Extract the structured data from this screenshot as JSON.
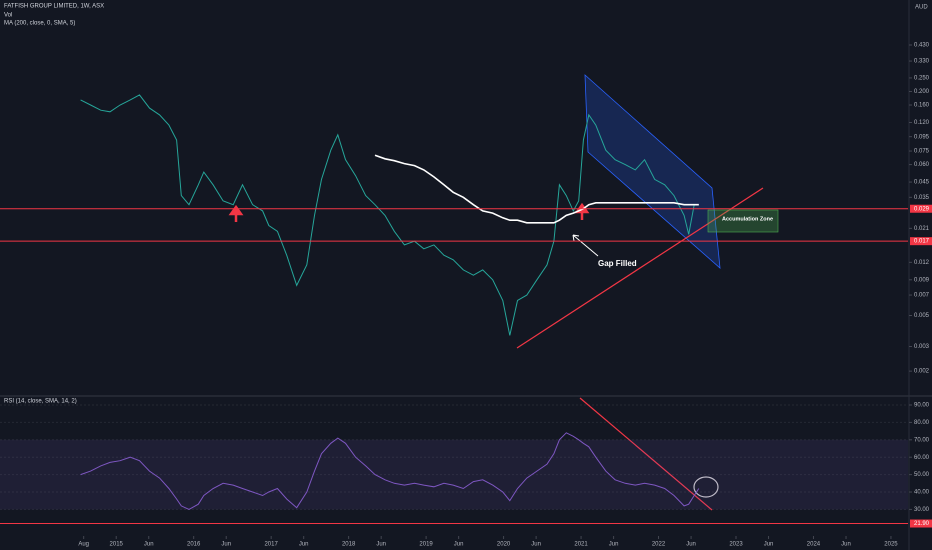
{
  "header": {
    "unit": "AUD"
  },
  "chart_data": [
    {
      "type": "line",
      "title": "FATFISH GROUP LIMITED, 1W, ASX",
      "indicators": [
        "Vol",
        "MA (200, close, 0, SMA, 5)"
      ],
      "log_scale": true,
      "annotations": [
        "Gap Filled",
        "Accumulation Zone"
      ],
      "x": [
        2014.54,
        2014.67,
        2014.8,
        2014.92,
        2015.05,
        2015.18,
        2015.3,
        2015.43,
        2015.56,
        2015.68,
        2015.78,
        2015.84,
        2015.94,
        2016.06,
        2016.13,
        2016.25,
        2016.38,
        2016.51,
        2016.63,
        2016.76,
        2016.89,
        2016.97,
        2017.08,
        2017.2,
        2017.33,
        2017.46,
        2017.56,
        2017.65,
        2017.77,
        2017.86,
        2017.96,
        2018.09,
        2018.22,
        2018.34,
        2018.47,
        2018.59,
        2018.72,
        2018.85,
        2018.97,
        2019.1,
        2019.23,
        2019.35,
        2019.48,
        2019.61,
        2019.73,
        2019.86,
        2019.99,
        2020.08,
        2020.18,
        2020.3,
        2020.43,
        2020.56,
        2020.65,
        2020.72,
        2020.81,
        2020.9,
        2020.97,
        2021.03,
        2021.1,
        2021.19,
        2021.32,
        2021.44,
        2021.57,
        2021.7,
        2021.82,
        2021.95,
        2022.08,
        2022.2,
        2022.33,
        2022.39,
        2022.46,
        2022.52
      ],
      "series": [
        {
          "color": "#26a69a",
          "values": [
            0.174,
            0.16,
            0.147,
            0.143,
            0.16,
            0.174,
            0.189,
            0.152,
            0.136,
            0.115,
            0.09,
            0.036,
            0.031,
            0.043,
            0.053,
            0.043,
            0.033,
            0.031,
            0.043,
            0.031,
            0.028,
            0.022,
            0.02,
            0.0135,
            0.0082,
            0.0115,
            0.026,
            0.047,
            0.076,
            0.098,
            0.065,
            0.05,
            0.036,
            0.031,
            0.026,
            0.02,
            0.016,
            0.017,
            0.015,
            0.016,
            0.0135,
            0.0125,
            0.0106,
            0.0097,
            0.0106,
            0.009,
            0.0064,
            0.0036,
            0.0064,
            0.007,
            0.009,
            0.0115,
            0.017,
            0.043,
            0.036,
            0.028,
            0.033,
            0.09,
            0.136,
            0.115,
            0.076,
            0.065,
            0.06,
            0.055,
            0.065,
            0.047,
            0.043,
            0.036,
            0.026,
            0.019,
            0.031,
            0.031
          ]
        },
        {
          "color": "#ffffff",
          "values": [
            null,
            null,
            null,
            null,
            null,
            null,
            null,
            null,
            null,
            null,
            null,
            null,
            null,
            null,
            null,
            null,
            null,
            null,
            null,
            null,
            null,
            null,
            null,
            null,
            null,
            null,
            null,
            null,
            null,
            null,
            null,
            null,
            null,
            0.07,
            0.066,
            0.064,
            0.061,
            0.059,
            0.055,
            0.049,
            0.043,
            0.038,
            0.035,
            0.031,
            0.028,
            0.027,
            0.025,
            0.024,
            0.024,
            0.023,
            0.023,
            0.023,
            0.023,
            0.024,
            0.026,
            0.027,
            0.028,
            0.029,
            0.031,
            0.032,
            0.032,
            0.032,
            0.032,
            0.032,
            0.032,
            0.032,
            0.032,
            0.032,
            0.031,
            0.031,
            0.031,
            0.031
          ]
        }
      ],
      "xlim": [
        2013.5,
        2025.22
      ],
      "ylim": [
        0.00135,
        0.902
      ],
      "yticks": [
        {
          "value": 0.43,
          "label": "0.430"
        },
        {
          "value": 0.33,
          "label": "0.330"
        },
        {
          "value": 0.25,
          "label": "0.250"
        },
        {
          "value": 0.2,
          "label": "0.200"
        },
        {
          "value": 0.16,
          "label": "0.160"
        },
        {
          "value": 0.12,
          "label": "0.120"
        },
        {
          "value": 0.095,
          "label": "0.095"
        },
        {
          "value": 0.075,
          "label": "0.075"
        },
        {
          "value": 0.06,
          "label": "0.060"
        },
        {
          "value": 0.045,
          "label": "0.045"
        },
        {
          "value": 0.035,
          "label": "0.035"
        },
        {
          "value": 0.021,
          "label": "0.021"
        },
        {
          "value": 0.012,
          "label": "0.012"
        },
        {
          "value": 0.009,
          "label": "0.009"
        },
        {
          "value": 0.007,
          "label": "0.007"
        },
        {
          "value": 0.005,
          "label": "0.005"
        },
        {
          "value": 0.003,
          "label": "0.003"
        },
        {
          "value": 0.002,
          "label": "0.002"
        }
      ],
      "levels": [
        {
          "value": 0.029,
          "label": "0.029",
          "color": "#f23645"
        },
        {
          "value": 0.017,
          "label": "0.017",
          "color": "#f23645"
        }
      ]
    },
    {
      "type": "line",
      "title": "RSI (14, close, SMA, 14, 2)",
      "x": [
        2014.54,
        2014.67,
        2014.8,
        2014.92,
        2015.05,
        2015.18,
        2015.3,
        2015.43,
        2015.56,
        2015.68,
        2015.78,
        2015.84,
        2015.94,
        2016.06,
        2016.13,
        2016.25,
        2016.38,
        2016.51,
        2016.63,
        2016.76,
        2016.89,
        2016.97,
        2017.08,
        2017.2,
        2017.33,
        2017.46,
        2017.56,
        2017.65,
        2017.77,
        2017.86,
        2017.96,
        2018.09,
        2018.22,
        2018.34,
        2018.47,
        2018.59,
        2018.72,
        2018.85,
        2018.97,
        2019.1,
        2019.23,
        2019.35,
        2019.48,
        2019.61,
        2019.73,
        2019.86,
        2019.99,
        2020.08,
        2020.18,
        2020.3,
        2020.43,
        2020.56,
        2020.65,
        2020.72,
        2020.81,
        2020.9,
        2020.97,
        2021.03,
        2021.1,
        2021.19,
        2021.32,
        2021.44,
        2021.57,
        2021.7,
        2021.82,
        2021.95,
        2022.08,
        2022.2,
        2022.33,
        2022.39,
        2022.46,
        2022.52
      ],
      "series": [
        {
          "color": "#7e57c2",
          "values": [
            50,
            52,
            55,
            57,
            58,
            60,
            58,
            52,
            48,
            42,
            36,
            32,
            30,
            33,
            38,
            42,
            45,
            44,
            42,
            40,
            38,
            40,
            42,
            36,
            31,
            40,
            52,
            62,
            68,
            71,
            68,
            60,
            55,
            50,
            47,
            45,
            44,
            45,
            44,
            43,
            45,
            44,
            42,
            46,
            47,
            44,
            40,
            35,
            42,
            48,
            52,
            56,
            62,
            70,
            74,
            72,
            70,
            68,
            66,
            60,
            52,
            47,
            45,
            44,
            45,
            44,
            42,
            38,
            32,
            33,
            38,
            42
          ]
        }
      ],
      "band": [
        30,
        70
      ],
      "xlim": [
        2013.5,
        2025.22
      ],
      "ylim": [
        15.3,
        94.6
      ],
      "yticks": [
        {
          "value": 90,
          "label": "90.00"
        },
        {
          "value": 80,
          "label": "80.00"
        },
        {
          "value": 70,
          "label": "70.00"
        },
        {
          "value": 60,
          "label": "60.00"
        },
        {
          "value": 50,
          "label": "50.00"
        },
        {
          "value": 40,
          "label": "40.00"
        },
        {
          "value": 30,
          "label": "30.00"
        }
      ],
      "levels": [
        {
          "value": 21.9,
          "label": "21.90",
          "color": "#f23645"
        }
      ],
      "xticks": [
        {
          "value": 2014.58,
          "label": "Aug"
        },
        2015,
        {
          "value": 2015.42,
          "label": "Jun"
        },
        2016,
        {
          "value": 2016.42,
          "label": "Jun"
        },
        2017,
        {
          "value": 2017.42,
          "label": "Jun"
        },
        2018,
        {
          "value": 2018.42,
          "label": "Jun"
        },
        2019,
        {
          "value": 2019.42,
          "label": "Jun"
        },
        2020,
        {
          "value": 2020.42,
          "label": "Jun"
        },
        2021,
        {
          "value": 2021.42,
          "label": "Jun"
        },
        2022,
        {
          "value": 2022.42,
          "label": "Jun"
        },
        2023,
        {
          "value": 2023.42,
          "label": "Jun"
        },
        2024,
        {
          "value": 2024.42,
          "label": "Jun"
        },
        2025
      ]
    }
  ]
}
